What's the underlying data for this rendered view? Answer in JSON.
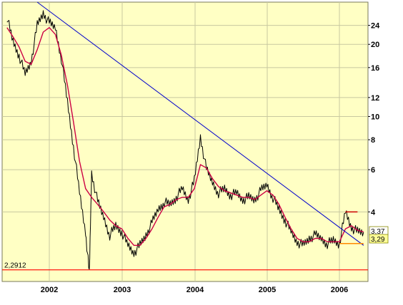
{
  "chart_data": {
    "type": "line",
    "y_scale": "log",
    "ylim": [
      2.15,
      30
    ],
    "y_ticks": [
      4,
      6,
      8,
      10,
      12,
      16,
      20,
      24
    ],
    "y_tick_labels": [
      "4",
      "6",
      "8",
      "10",
      "12",
      "16",
      "20",
      "24"
    ],
    "x_ticks": [
      "2002",
      "2003",
      "2004",
      "2005",
      "2006"
    ],
    "grid": true,
    "series": [
      {
        "role": "price",
        "color": "#000000",
        "x": [
          "2001-06",
          "2001-07",
          "2001-08",
          "2001-09",
          "2001-10",
          "2001-11",
          "2001-12",
          "2002-01",
          "2002-02",
          "2002-03",
          "2002-04",
          "2002-05",
          "2002-06",
          "2002-07",
          "2002-07-20",
          "2002-08",
          "2002-09",
          "2002-10",
          "2002-11",
          "2002-12",
          "2003-01",
          "2003-02",
          "2003-03",
          "2003-04",
          "2003-05",
          "2003-06",
          "2003-07",
          "2003-08",
          "2003-09",
          "2003-10",
          "2003-11",
          "2003-12",
          "2004-01",
          "2004-02",
          "2004-03",
          "2004-04",
          "2004-05",
          "2004-06",
          "2004-07",
          "2004-08",
          "2004-09",
          "2004-10",
          "2004-11",
          "2004-12",
          "2005-01",
          "2005-02",
          "2005-03",
          "2005-04",
          "2005-05",
          "2005-06",
          "2005-07",
          "2005-08",
          "2005-09",
          "2005-10",
          "2005-11",
          "2005-12",
          "2006-01",
          "2006-02",
          "2006-03",
          "2006-04",
          "2006-05"
        ],
        "values": [
          26.0,
          20.5,
          18.0,
          15.0,
          17.0,
          24.0,
          27.0,
          24.5,
          23.5,
          17.5,
          11.5,
          7.5,
          4.8,
          3.3,
          2.2,
          5.8,
          4.4,
          3.8,
          3.2,
          3.5,
          3.3,
          2.9,
          2.7,
          2.9,
          3.2,
          3.6,
          4.1,
          4.4,
          4.3,
          4.6,
          5.0,
          4.5,
          5.4,
          8.2,
          6.0,
          5.3,
          4.8,
          5.0,
          4.7,
          4.8,
          4.5,
          4.6,
          4.5,
          4.9,
          5.2,
          4.6,
          4.1,
          3.7,
          3.3,
          3.0,
          2.9,
          3.1,
          3.2,
          3.1,
          2.95,
          3.05,
          2.95,
          4.0,
          3.45,
          3.3,
          3.29
        ]
      },
      {
        "role": "moving-average",
        "color": "#cc0044",
        "x": [
          "2001-06",
          "2001-07",
          "2001-08",
          "2001-09",
          "2001-10",
          "2001-11",
          "2001-12",
          "2002-01",
          "2002-02",
          "2002-03",
          "2002-04",
          "2002-05",
          "2002-06",
          "2002-07",
          "2002-08",
          "2002-09",
          "2002-10",
          "2002-11",
          "2002-12",
          "2003-01",
          "2003-02",
          "2003-03",
          "2003-04",
          "2003-05",
          "2003-06",
          "2003-07",
          "2003-08",
          "2003-09",
          "2003-10",
          "2003-11",
          "2003-12",
          "2004-01",
          "2004-02",
          "2004-03",
          "2004-04",
          "2004-05",
          "2004-06",
          "2004-07",
          "2004-08",
          "2004-09",
          "2004-10",
          "2004-11",
          "2004-12",
          "2005-01",
          "2005-02",
          "2005-03",
          "2005-04",
          "2005-05",
          "2005-06",
          "2005-07",
          "2005-08",
          "2005-09",
          "2005-10",
          "2005-11",
          "2005-12",
          "2006-01",
          "2006-02",
          "2006-03",
          "2006-04",
          "2006-05"
        ],
        "values": [
          23.5,
          21.5,
          19.5,
          17.0,
          16.5,
          19.0,
          22.5,
          23.5,
          22.0,
          18.0,
          13.5,
          9.5,
          6.5,
          5.0,
          4.6,
          4.3,
          4.0,
          3.7,
          3.5,
          3.4,
          3.1,
          2.9,
          2.9,
          3.1,
          3.4,
          3.8,
          4.2,
          4.3,
          4.5,
          4.6,
          4.6,
          5.0,
          6.3,
          6.1,
          5.5,
          5.1,
          4.9,
          4.8,
          4.7,
          4.6,
          4.6,
          4.5,
          4.7,
          4.9,
          4.7,
          4.3,
          3.8,
          3.4,
          3.1,
          3.0,
          3.0,
          3.1,
          3.1,
          3.0,
          3.0,
          3.0,
          3.4,
          3.5,
          3.35,
          3.3
        ]
      }
    ],
    "trendline": {
      "color": "#0000cc",
      "from": {
        "x": "2001-11",
        "y": 30
      },
      "to": {
        "x": "2006-05",
        "y": 2.9
      }
    },
    "support_line": {
      "color": "#ff0000",
      "value": 2.2912,
      "label": "2,2912"
    },
    "short_orange_segment": {
      "color": "#ff8800",
      "from_x": "2006-01",
      "to_x": "2006-05",
      "y": 2.95
    },
    "short_red_segment": {
      "color": "#cc0000",
      "from_x": "2006-02",
      "to_x": "2006-04",
      "y": 4.0
    },
    "last_price_labels": [
      {
        "text": "3,37",
        "color": "#000000",
        "background": "#ffffff"
      },
      {
        "text": "3,29",
        "color": "#000000",
        "background": "#ffff99"
      }
    ],
    "background": "#ffffc4",
    "gridline_color": "#c8c8a0"
  }
}
